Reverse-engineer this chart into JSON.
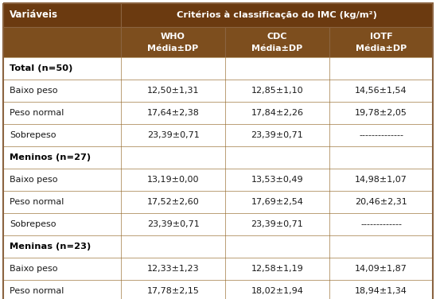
{
  "header_bg": "#6B3A10",
  "header_text_color": "#FFFFFF",
  "subheader_bg": "#7D4E1E",
  "body_bg": "#FFFFFF",
  "border_color": "#8B6340",
  "line_color": "#A07840",
  "col0_header": "Variáveis",
  "span_header": "Critérios à classificação do IMC (kg/m²)",
  "subheaders_line1": [
    "WHO",
    "CDC",
    "IOTF"
  ],
  "subheaders_line2": [
    "Média±DP",
    "Média±DP",
    "Média±DP"
  ],
  "rows": [
    {
      "label": "Total (n=50)",
      "bold": true,
      "values": [
        "",
        "",
        ""
      ]
    },
    {
      "label": "Baixo peso",
      "bold": false,
      "values": [
        "12,50±1,31",
        "12,85±1,10",
        "14,56±1,54"
      ]
    },
    {
      "label": "Peso normal",
      "bold": false,
      "values": [
        "17,64±2,38",
        "17,84±2,26",
        "19,78±2,05"
      ]
    },
    {
      "label": "Sobrepeso",
      "bold": false,
      "values": [
        "23,39±0,71",
        "23,39±0,71",
        "--------------"
      ]
    },
    {
      "label": "Meninos (n=27)",
      "bold": true,
      "values": [
        "",
        "",
        ""
      ]
    },
    {
      "label": "Baixo peso",
      "bold": false,
      "values": [
        "13,19±0,00",
        "13,53±0,49",
        "14,98±1,07"
      ]
    },
    {
      "label": "Peso normal",
      "bold": false,
      "values": [
        "17,52±2,60",
        "17,69±2,54",
        "20,46±2,31"
      ]
    },
    {
      "label": "Sobrepeso",
      "bold": false,
      "values": [
        "23,39±0,71",
        "23,39±0,71",
        "-------------"
      ]
    },
    {
      "label": "Meninas (n=23)",
      "bold": true,
      "values": [
        "",
        "",
        ""
      ]
    },
    {
      "label": "Baixo peso",
      "bold": false,
      "values": [
        "12,33±1,23",
        "12,58±1,19",
        "14,09±1,87"
      ]
    },
    {
      "label": "Peso normal",
      "bold": false,
      "values": [
        "17,78±2,15",
        "18,02±1,94",
        "18,94±1,34"
      ]
    }
  ],
  "body_text_color": "#1A1A1A",
  "bold_text_color": "#000000",
  "figsize": [
    5.48,
    3.76
  ],
  "dpi": 100
}
